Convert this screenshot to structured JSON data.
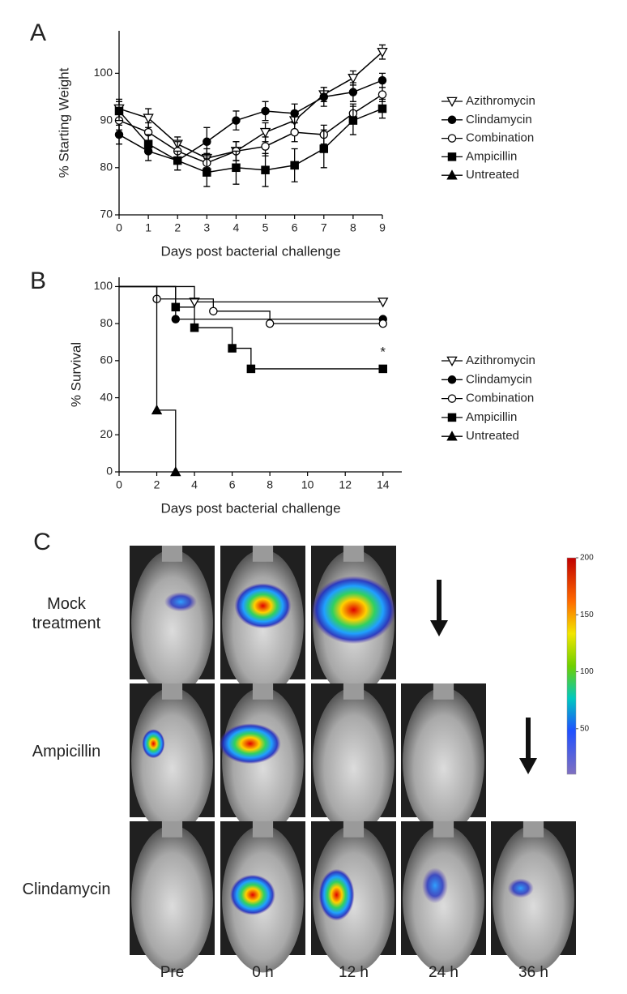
{
  "chart_data": [
    {
      "type": "line",
      "panel_label": "A",
      "y_label": "% Starting Weight",
      "x_label": "Days post bacterial challenge",
      "x": [
        0,
        1,
        2,
        3,
        4,
        5,
        6,
        7,
        8,
        9
      ],
      "xlim": [
        0,
        9
      ],
      "xticks": [
        0,
        1,
        2,
        3,
        4,
        5,
        6,
        7,
        8,
        9
      ],
      "ylim": [
        70,
        109
      ],
      "yticks": [
        70,
        80,
        90,
        100
      ],
      "grid": false,
      "series": [
        {
          "name": "Azithromycin",
          "color": "#000000",
          "marker": "triangle-down",
          "values": [
            92.5,
            90.5,
            85,
            82,
            83.5,
            87.5,
            90,
            95.5,
            99,
            104.5
          ],
          "errors": [
            2,
            2,
            1.5,
            2,
            2,
            2,
            2,
            1.5,
            1.5,
            1.5
          ]
        },
        {
          "name": "Clindamycin",
          "color": "#000000",
          "marker": "circle",
          "values": [
            87,
            83.5,
            81.5,
            85.5,
            90,
            92,
            91.5,
            95,
            96,
            98.5
          ],
          "errors": [
            2,
            2,
            2,
            3,
            2,
            2,
            2,
            2,
            2,
            1.5
          ]
        },
        {
          "name": "Combination",
          "color": "#000000",
          "marker": "circle-open",
          "values": [
            90,
            87.5,
            83.5,
            81,
            83.5,
            84.5,
            87.5,
            87,
            91.5,
            95.5
          ],
          "errors": [
            2,
            2,
            2,
            2,
            2,
            2,
            2,
            2,
            2,
            1.5
          ]
        },
        {
          "name": "Ampicillin",
          "color": "#000000",
          "marker": "square",
          "values": [
            92,
            85,
            81.5,
            79,
            80,
            79.5,
            80.5,
            84,
            90,
            92.5
          ],
          "errors": [
            2,
            2,
            2,
            3,
            3.5,
            3.5,
            3.5,
            4,
            3,
            2
          ]
        },
        {
          "name": "Untreated",
          "color": "#000000",
          "marker": "triangle",
          "values": [
            null,
            null,
            null,
            null,
            null,
            null,
            null,
            null,
            null,
            null
          ],
          "errors": [
            null,
            null,
            null,
            null,
            null,
            null,
            null,
            null,
            null,
            null
          ]
        }
      ]
    },
    {
      "type": "step",
      "panel_label": "B",
      "y_label": "% Survival",
      "x_label": "Days post bacterial challenge",
      "xlim": [
        0,
        15
      ],
      "xticks": [
        0,
        2,
        4,
        6,
        8,
        10,
        12,
        14
      ],
      "ylim": [
        0,
        105
      ],
      "yticks": [
        0,
        20,
        40,
        60,
        80,
        100
      ],
      "grid": false,
      "annotation": "*",
      "series": [
        {
          "name": "Azithromycin",
          "color": "#000000",
          "marker": "triangle-down",
          "x": [
            0,
            4,
            14
          ],
          "values": [
            100,
            91.7,
            91.7
          ]
        },
        {
          "name": "Clindamycin",
          "color": "#000000",
          "marker": "circle",
          "x": [
            0,
            3,
            14
          ],
          "values": [
            100,
            82.4,
            82.4
          ]
        },
        {
          "name": "Combination",
          "color": "#000000",
          "marker": "circle-open",
          "x": [
            0,
            2,
            5,
            8,
            14
          ],
          "values": [
            100,
            93.3,
            86.7,
            80,
            80
          ]
        },
        {
          "name": "Ampicillin",
          "color": "#000000",
          "marker": "square",
          "x": [
            0,
            3,
            4,
            6,
            7,
            14
          ],
          "values": [
            100,
            88.9,
            77.8,
            66.7,
            55.6,
            55.6
          ]
        },
        {
          "name": "Untreated",
          "color": "#000000",
          "marker": "triangle",
          "x": [
            0,
            2,
            3
          ],
          "values": [
            100,
            33.3,
            0
          ]
        }
      ]
    }
  ],
  "panel_c": {
    "label": "C",
    "rows": [
      "Mock treatment",
      "Ampicillin",
      "Clindamycin"
    ],
    "columns": [
      "Pre",
      "0 h",
      "12 h",
      "24 h",
      "36 h"
    ],
    "colorbar_lim": [
      10,
      200
    ],
    "colorbar_ticks": [
      200,
      150,
      100,
      50
    ]
  }
}
